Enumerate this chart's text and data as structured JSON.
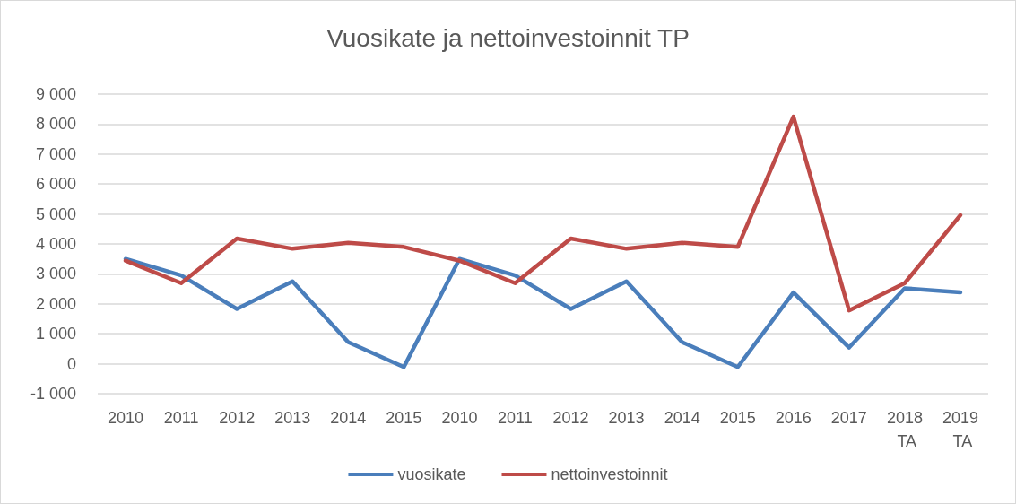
{
  "chart_data": {
    "type": "line",
    "title": "Vuosikate ja nettoinvestoinnit TP",
    "categories": [
      "2010",
      "2011",
      "2012",
      "2013",
      "2014",
      "2015",
      "2010",
      "2011",
      "2012",
      "2013",
      "2014",
      "2015",
      "2016",
      "2017",
      "2018 TA",
      "2019 TA"
    ],
    "series": [
      {
        "name": "vuosikate",
        "color": "#4a7ebb",
        "values": [
          3500,
          2950,
          1830,
          2750,
          720,
          -110,
          3500,
          2950,
          1830,
          2750,
          720,
          -110,
          2380,
          540,
          2520,
          2380
        ]
      },
      {
        "name": "nettoinvestoinnit",
        "color": "#be4b48",
        "values": [
          3440,
          2690,
          4180,
          3840,
          4040,
          3900,
          3440,
          2690,
          4180,
          3840,
          4040,
          3900,
          8250,
          1780,
          2690,
          4960
        ]
      }
    ],
    "ylim": [
      -1000,
      9000
    ],
    "yticks": [
      {
        "value": -1000,
        "label": "-1 000"
      },
      0,
      {
        "value": 1000,
        "label": "1 000"
      },
      {
        "value": 2000,
        "label": "2 000"
      },
      {
        "value": 3000,
        "label": "3 000"
      },
      {
        "value": 4000,
        "label": "4 000"
      },
      {
        "value": 5000,
        "label": "5 000"
      },
      {
        "value": 6000,
        "label": "6 000"
      },
      {
        "value": 7000,
        "label": "7 000"
      },
      {
        "value": 8000,
        "label": "8 000"
      },
      {
        "value": 9000,
        "label": "9 000"
      }
    ],
    "grid": "y",
    "legend": "bottom",
    "marker": "none",
    "line_style": "solid"
  }
}
